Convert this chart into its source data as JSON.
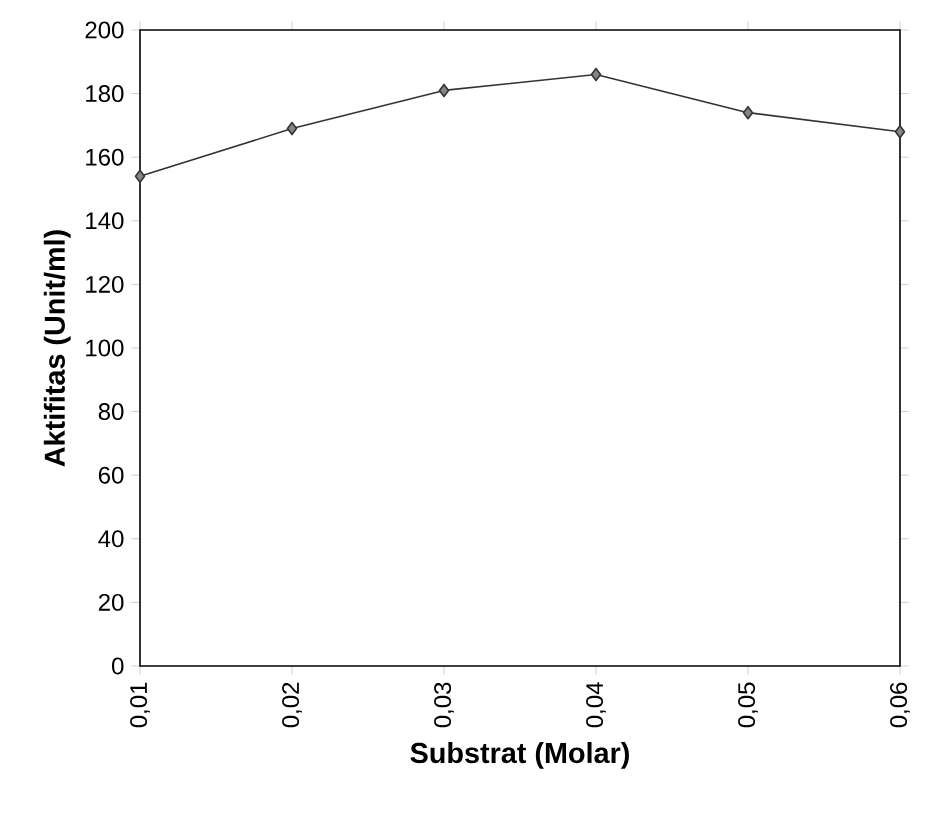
{
  "chart_data": {
    "type": "line",
    "xlabel": "Substrat (Molar)",
    "ylabel": "Aktifitas (Unit/ml)",
    "x": [
      0.01,
      0.02,
      0.03,
      0.04,
      0.05,
      0.06
    ],
    "series": [
      {
        "color": "#333333",
        "values": [
          154,
          169,
          181,
          186,
          174,
          168
        ]
      }
    ],
    "xlim": [
      0.01,
      0.06
    ],
    "xticks": [
      {
        "value": 0.01,
        "label": "0,01"
      },
      {
        "value": 0.02,
        "label": "0,02"
      },
      {
        "value": 0.03,
        "label": "0,03"
      },
      {
        "value": 0.04,
        "label": "0,04"
      },
      {
        "value": 0.05,
        "label": "0,05"
      },
      {
        "value": 0.06,
        "label": "0,06"
      }
    ],
    "ylim": [
      0,
      200
    ],
    "yticks": [
      0,
      20,
      40,
      60,
      80,
      100,
      120,
      140,
      160,
      180,
      200
    ],
    "marker": "diamond",
    "line_style": "solid",
    "grid": false
  }
}
